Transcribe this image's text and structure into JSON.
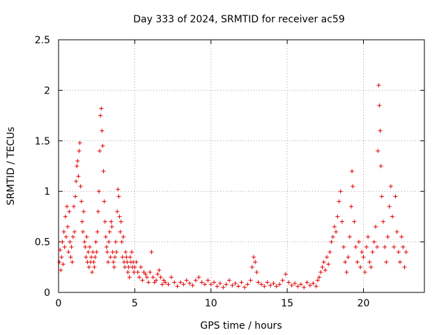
{
  "chart_data": {
    "type": "scatter",
    "title": "Day 333 of 2024, SRMTID for receiver ac59",
    "xlabel": "GPS time / hours",
    "ylabel": "SRMTID / TECUs",
    "xlim": [
      0,
      24
    ],
    "ylim": [
      0,
      2.5
    ],
    "xticks": [
      0,
      5,
      10,
      15,
      20
    ],
    "xtick_labels": [
      "0",
      "5",
      "10",
      "15",
      "20"
    ],
    "yticks": [
      0,
      0.5,
      1,
      1.5,
      2,
      2.5
    ],
    "ytick_labels": [
      "0",
      "0.5",
      "1",
      "1.5",
      "2",
      "2.5"
    ],
    "grid": true,
    "marker": "plus",
    "color": "#e00000",
    "series": [
      {
        "name": "SRMTID",
        "points": [
          [
            0.05,
            0.3
          ],
          [
            0.1,
            0.42
          ],
          [
            0.15,
            0.22
          ],
          [
            0.2,
            0.35
          ],
          [
            0.25,
            0.5
          ],
          [
            0.3,
            0.28
          ],
          [
            0.35,
            0.6
          ],
          [
            0.4,
            0.45
          ],
          [
            0.45,
            0.75
          ],
          [
            0.5,
            0.55
          ],
          [
            0.55,
            0.85
          ],
          [
            0.6,
            0.65
          ],
          [
            0.65,
            0.4
          ],
          [
            0.7,
            0.8
          ],
          [
            0.75,
            0.5
          ],
          [
            0.8,
            0.35
          ],
          [
            0.85,
            0.45
          ],
          [
            0.9,
            0.3
          ],
          [
            0.95,
            0.55
          ],
          [
            1.0,
            0.85
          ],
          [
            1.05,
            0.6
          ],
          [
            1.1,
            0.95
          ],
          [
            1.15,
            1.1
          ],
          [
            1.2,
            1.25
          ],
          [
            1.25,
            1.3
          ],
          [
            1.3,
            1.15
          ],
          [
            1.35,
            1.4
          ],
          [
            1.4,
            1.48
          ],
          [
            1.45,
            1.05
          ],
          [
            1.5,
            0.9
          ],
          [
            1.55,
            0.7
          ],
          [
            1.6,
            0.6
          ],
          [
            1.65,
            0.8
          ],
          [
            1.7,
            0.5
          ],
          [
            1.75,
            0.45
          ],
          [
            1.8,
            0.35
          ],
          [
            1.85,
            0.55
          ],
          [
            1.9,
            0.3
          ],
          [
            1.95,
            0.4
          ],
          [
            2.0,
            0.25
          ],
          [
            2.05,
            0.45
          ],
          [
            2.1,
            0.3
          ],
          [
            2.15,
            0.35
          ],
          [
            2.2,
            0.2
          ],
          [
            2.25,
            0.4
          ],
          [
            2.3,
            0.3
          ],
          [
            2.35,
            0.25
          ],
          [
            2.4,
            0.35
          ],
          [
            2.45,
            0.5
          ],
          [
            2.5,
            0.4
          ],
          [
            2.55,
            0.6
          ],
          [
            2.6,
            0.8
          ],
          [
            2.65,
            1.0
          ],
          [
            2.7,
            1.4
          ],
          [
            2.75,
            1.75
          ],
          [
            2.8,
            1.82
          ],
          [
            2.85,
            1.6
          ],
          [
            2.9,
            1.45
          ],
          [
            2.95,
            1.2
          ],
          [
            3.0,
            0.9
          ],
          [
            3.05,
            0.7
          ],
          [
            3.1,
            0.55
          ],
          [
            3.15,
            0.45
          ],
          [
            3.2,
            0.4
          ],
          [
            3.25,
            0.3
          ],
          [
            3.3,
            0.5
          ],
          [
            3.35,
            0.6
          ],
          [
            3.4,
            0.35
          ],
          [
            3.45,
            0.7
          ],
          [
            3.5,
            0.65
          ],
          [
            3.55,
            0.4
          ],
          [
            3.6,
            0.3
          ],
          [
            3.65,
            0.25
          ],
          [
            3.7,
            0.35
          ],
          [
            3.75,
            0.5
          ],
          [
            3.8,
            0.4
          ],
          [
            3.85,
            0.8
          ],
          [
            3.9,
            1.02
          ],
          [
            3.95,
            0.95
          ],
          [
            4.0,
            0.75
          ],
          [
            4.05,
            0.6
          ],
          [
            4.1,
            0.7
          ],
          [
            4.15,
            0.5
          ],
          [
            4.2,
            0.35
          ],
          [
            4.25,
            0.55
          ],
          [
            4.3,
            0.3
          ],
          [
            4.35,
            0.25
          ],
          [
            4.4,
            0.4
          ],
          [
            4.45,
            0.35
          ],
          [
            4.5,
            0.3
          ],
          [
            4.55,
            0.2
          ],
          [
            4.6,
            0.25
          ],
          [
            4.65,
            0.15
          ],
          [
            4.7,
            0.35
          ],
          [
            4.75,
            0.3
          ],
          [
            4.8,
            0.4
          ],
          [
            4.85,
            0.25
          ],
          [
            4.9,
            0.3
          ],
          [
            4.95,
            0.2
          ],
          [
            5.0,
            0.25
          ],
          [
            5.1,
            0.3
          ],
          [
            5.2,
            0.2
          ],
          [
            5.3,
            0.15
          ],
          [
            5.4,
            0.25
          ],
          [
            5.5,
            0.12
          ],
          [
            5.6,
            0.2
          ],
          [
            5.7,
            0.18
          ],
          [
            5.8,
            0.15
          ],
          [
            5.9,
            0.1
          ],
          [
            6.0,
            0.2
          ],
          [
            6.1,
            0.4
          ],
          [
            6.2,
            0.15
          ],
          [
            6.3,
            0.1
          ],
          [
            6.4,
            0.12
          ],
          [
            6.5,
            0.18
          ],
          [
            6.6,
            0.22
          ],
          [
            6.7,
            0.15
          ],
          [
            6.8,
            0.08
          ],
          [
            6.9,
            0.12
          ],
          [
            7.0,
            0.1
          ],
          [
            7.2,
            0.08
          ],
          [
            7.4,
            0.15
          ],
          [
            7.6,
            0.1
          ],
          [
            7.8,
            0.06
          ],
          [
            8.0,
            0.1
          ],
          [
            8.2,
            0.08
          ],
          [
            8.4,
            0.12
          ],
          [
            8.6,
            0.09
          ],
          [
            8.8,
            0.07
          ],
          [
            9.0,
            0.12
          ],
          [
            9.2,
            0.15
          ],
          [
            9.4,
            0.1
          ],
          [
            9.6,
            0.08
          ],
          [
            9.8,
            0.12
          ],
          [
            10.0,
            0.08
          ],
          [
            10.2,
            0.1
          ],
          [
            10.4,
            0.06
          ],
          [
            10.6,
            0.09
          ],
          [
            10.8,
            0.05
          ],
          [
            11.0,
            0.08
          ],
          [
            11.2,
            0.12
          ],
          [
            11.4,
            0.07
          ],
          [
            11.6,
            0.09
          ],
          [
            11.8,
            0.06
          ],
          [
            12.0,
            0.1
          ],
          [
            12.2,
            0.05
          ],
          [
            12.4,
            0.08
          ],
          [
            12.6,
            0.12
          ],
          [
            12.7,
            0.25
          ],
          [
            12.8,
            0.35
          ],
          [
            12.9,
            0.3
          ],
          [
            13.0,
            0.2
          ],
          [
            13.1,
            0.1
          ],
          [
            13.3,
            0.08
          ],
          [
            13.5,
            0.06
          ],
          [
            13.7,
            0.1
          ],
          [
            13.9,
            0.07
          ],
          [
            14.1,
            0.09
          ],
          [
            14.3,
            0.06
          ],
          [
            14.5,
            0.08
          ],
          [
            14.7,
            0.12
          ],
          [
            14.9,
            0.18
          ],
          [
            15.1,
            0.1
          ],
          [
            15.3,
            0.07
          ],
          [
            15.5,
            0.09
          ],
          [
            15.7,
            0.06
          ],
          [
            15.9,
            0.08
          ],
          [
            16.1,
            0.05
          ],
          [
            16.3,
            0.1
          ],
          [
            16.5,
            0.07
          ],
          [
            16.7,
            0.09
          ],
          [
            16.9,
            0.06
          ],
          [
            17.0,
            0.12
          ],
          [
            17.1,
            0.15
          ],
          [
            17.2,
            0.2
          ],
          [
            17.3,
            0.25
          ],
          [
            17.4,
            0.3
          ],
          [
            17.5,
            0.22
          ],
          [
            17.6,
            0.35
          ],
          [
            17.7,
            0.28
          ],
          [
            17.8,
            0.4
          ],
          [
            17.9,
            0.5
          ],
          [
            18.0,
            0.55
          ],
          [
            18.1,
            0.65
          ],
          [
            18.2,
            0.6
          ],
          [
            18.3,
            0.75
          ],
          [
            18.4,
            0.9
          ],
          [
            18.5,
            1.0
          ],
          [
            18.6,
            0.7
          ],
          [
            18.7,
            0.45
          ],
          [
            18.8,
            0.3
          ],
          [
            18.9,
            0.2
          ],
          [
            19.0,
            0.35
          ],
          [
            19.1,
            0.55
          ],
          [
            19.2,
            0.85
          ],
          [
            19.25,
            1.2
          ],
          [
            19.3,
            1.05
          ],
          [
            19.4,
            0.7
          ],
          [
            19.5,
            0.45
          ],
          [
            19.6,
            0.3
          ],
          [
            19.7,
            0.5
          ],
          [
            19.8,
            0.25
          ],
          [
            19.9,
            0.4
          ],
          [
            20.0,
            0.35
          ],
          [
            20.1,
            0.2
          ],
          [
            20.2,
            0.45
          ],
          [
            20.3,
            0.55
          ],
          [
            20.4,
            0.3
          ],
          [
            20.5,
            0.25
          ],
          [
            20.6,
            0.4
          ],
          [
            20.7,
            0.5
          ],
          [
            20.8,
            0.65
          ],
          [
            20.9,
            0.45
          ],
          [
            20.95,
            1.4
          ],
          [
            21.0,
            2.05
          ],
          [
            21.05,
            1.85
          ],
          [
            21.1,
            1.6
          ],
          [
            21.15,
            1.25
          ],
          [
            21.2,
            0.95
          ],
          [
            21.3,
            0.7
          ],
          [
            21.4,
            0.45
          ],
          [
            21.5,
            0.3
          ],
          [
            21.6,
            0.55
          ],
          [
            21.7,
            0.85
          ],
          [
            21.8,
            1.05
          ],
          [
            21.9,
            0.75
          ],
          [
            22.0,
            0.45
          ],
          [
            22.1,
            0.95
          ],
          [
            22.2,
            0.6
          ],
          [
            22.3,
            0.4
          ],
          [
            22.4,
            0.3
          ],
          [
            22.5,
            0.55
          ],
          [
            22.6,
            0.45
          ],
          [
            22.7,
            0.25
          ],
          [
            22.8,
            0.4
          ]
        ]
      }
    ]
  }
}
